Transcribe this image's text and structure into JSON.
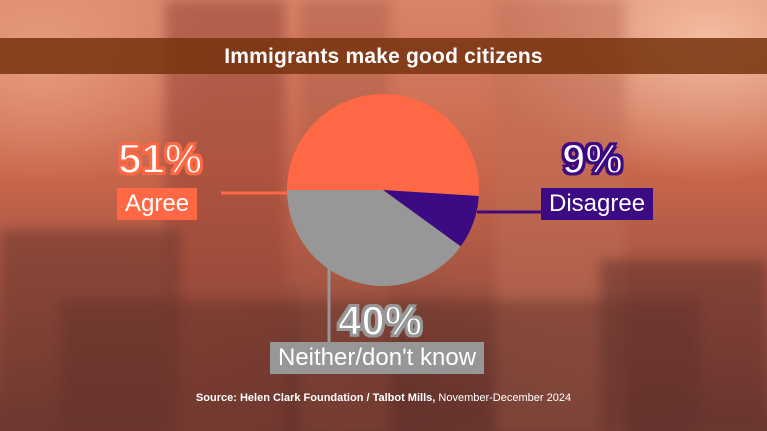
{
  "title": "Immigrants make good citizens",
  "source": {
    "prefix": "Source:",
    "org": "Helen Clark Foundation / Talbot Mills,",
    "period": "November-December 2024"
  },
  "colors": {
    "agree": "#ff6845",
    "neither": "#979797",
    "disagree": "#3c0a82",
    "title_bar": "#78320f"
  },
  "chart_data": {
    "type": "pie",
    "title": "Immigrants make good citizens",
    "slices": [
      {
        "label": "Agree",
        "value": 51,
        "display": "51%",
        "color": "#ff6845"
      },
      {
        "label": "Disagree",
        "value": 9,
        "display": "9%",
        "color": "#3c0a82"
      },
      {
        "label": "Neither/don't know",
        "value": 40,
        "display": "40%",
        "color": "#979797"
      }
    ]
  }
}
